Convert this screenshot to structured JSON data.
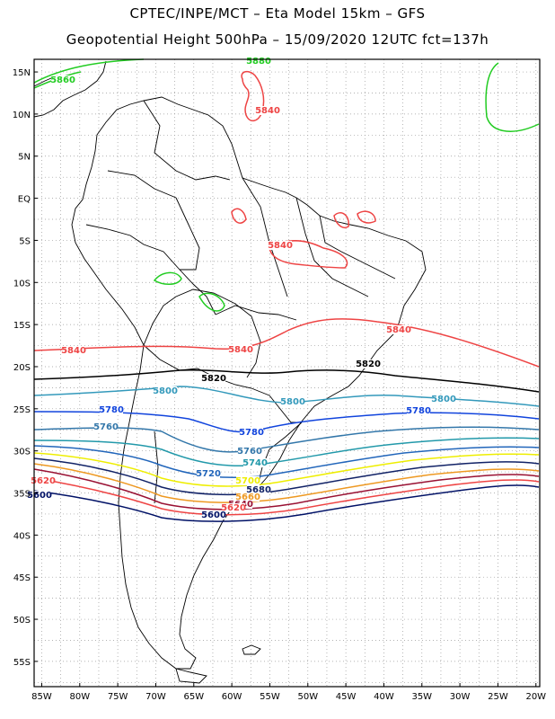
{
  "title_line1": "CPTEC/INPE/MCT – Eta Model 15km – GFS",
  "title_line2": "Geopotential Height 500hPa – 15/09/2020 12UTC fct=137h",
  "lat_ticks": [
    "15N",
    "10N",
    "5N",
    "EQ",
    "5S",
    "10S",
    "15S",
    "20S",
    "25S",
    "30S",
    "35S",
    "40S",
    "45S",
    "50S",
    "55S"
  ],
  "lon_ticks": [
    "85W",
    "80W",
    "75W",
    "70W",
    "65W",
    "60W",
    "55W",
    "50W",
    "45W",
    "40W",
    "35W",
    "30W",
    "25W",
    "20W"
  ],
  "colors": {
    "c5880": "#22cc22",
    "c5860": "#22cc22",
    "c5840": "#ee4444",
    "c5820": "#000000",
    "c5800": "#3399bb",
    "c5780": "#1144dd",
    "c5760": "#3377aa",
    "c5740": "#2299aa",
    "c5720": "#2266bb",
    "c5700": "#eeee00",
    "c5680": "#112266",
    "c5660": "#ee9922",
    "c5640": "#991133",
    "c5620": "#ee4444",
    "c5600": "#001166"
  },
  "contour_labels": [
    {
      "text": "5880",
      "color": "#22cc22"
    },
    {
      "text": "5860",
      "color": "#22cc22"
    },
    {
      "text": "5840",
      "color": "#ee4444"
    },
    {
      "text": "5840",
      "color": "#ee4444"
    },
    {
      "text": "5840",
      "color": "#ee4444"
    },
    {
      "text": "5840",
      "color": "#ee4444"
    },
    {
      "text": "5840",
      "color": "#ee4444"
    },
    {
      "text": "5820",
      "color": "#000000"
    },
    {
      "text": "5820",
      "color": "#000000"
    },
    {
      "text": "5800",
      "color": "#3399bb"
    },
    {
      "text": "5800",
      "color": "#3399bb"
    },
    {
      "text": "5800",
      "color": "#3399bb"
    },
    {
      "text": "5780",
      "color": "#1144dd"
    },
    {
      "text": "5780",
      "color": "#1144dd"
    },
    {
      "text": "5780",
      "color": "#1144dd"
    },
    {
      "text": "5760",
      "color": "#3377aa"
    },
    {
      "text": "5760",
      "color": "#3377aa"
    },
    {
      "text": "5740",
      "color": "#2299aa"
    },
    {
      "text": "5720",
      "color": "#2266bb"
    },
    {
      "text": "5700",
      "color": "#eeee00"
    },
    {
      "text": "5680",
      "color": "#112266"
    },
    {
      "text": "5660",
      "color": "#ee9922"
    },
    {
      "text": "5640",
      "color": "#991133"
    },
    {
      "text": "5620",
      "color": "#ee4444"
    },
    {
      "text": "5620",
      "color": "#ee4444"
    },
    {
      "text": "5600",
      "color": "#001166"
    },
    {
      "text": "5600",
      "color": "#001166"
    }
  ]
}
